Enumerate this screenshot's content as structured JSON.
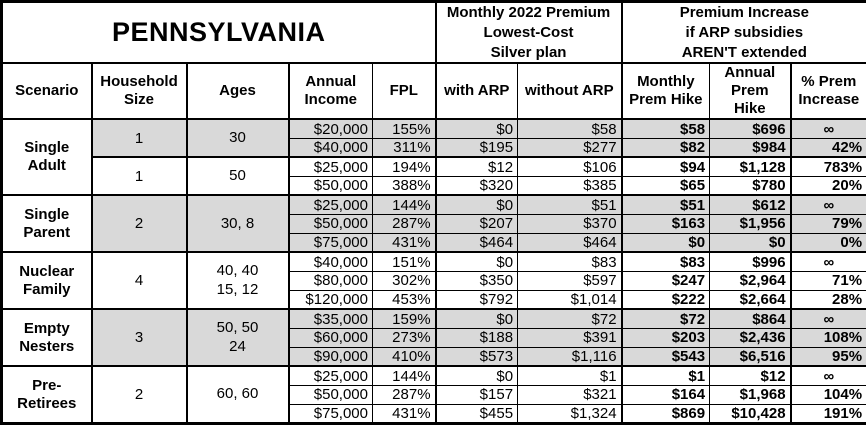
{
  "header": {
    "state": "PENNSYLVANIA",
    "premium_group": "Monthly 2022 Premium\nLowest-Cost\nSilver plan",
    "increase_group": "Premium Increase\nif ARP subsidies\nAREN'T extended"
  },
  "columns": [
    "Scenario",
    "Household\nSize",
    "Ages",
    "Annual\nIncome",
    "FPL",
    "with ARP",
    "without ARP",
    "Monthly\nPrem Hike",
    "Annual\nPrem Hike",
    "% Prem\nIncrease"
  ],
  "colors": {
    "shaded_row": "#d9d9d9",
    "border": "#000000",
    "text": "#000000",
    "background": "#ffffff"
  },
  "scenarios": [
    {
      "name": "Single Adult",
      "subgroups": [
        {
          "household_size": "1",
          "ages": "30",
          "shaded": true,
          "rows": [
            {
              "income": "$20,000",
              "fpl": "155%",
              "with_arp": "$0",
              "without_arp": "$58",
              "monthly_hike": "$58",
              "annual_hike": "$696",
              "pct_increase": "∞"
            },
            {
              "income": "$40,000",
              "fpl": "311%",
              "with_arp": "$195",
              "without_arp": "$277",
              "monthly_hike": "$82",
              "annual_hike": "$984",
              "pct_increase": "42%"
            }
          ]
        },
        {
          "household_size": "1",
          "ages": "50",
          "shaded": false,
          "rows": [
            {
              "income": "$25,000",
              "fpl": "194%",
              "with_arp": "$12",
              "without_arp": "$106",
              "monthly_hike": "$94",
              "annual_hike": "$1,128",
              "pct_increase": "783%"
            },
            {
              "income": "$50,000",
              "fpl": "388%",
              "with_arp": "$320",
              "without_arp": "$385",
              "monthly_hike": "$65",
              "annual_hike": "$780",
              "pct_increase": "20%"
            }
          ]
        }
      ]
    },
    {
      "name": "Single Parent",
      "subgroups": [
        {
          "household_size": "2",
          "ages": "30, 8",
          "shaded": true,
          "rows": [
            {
              "income": "$25,000",
              "fpl": "144%",
              "with_arp": "$0",
              "without_arp": "$51",
              "monthly_hike": "$51",
              "annual_hike": "$612",
              "pct_increase": "∞"
            },
            {
              "income": "$50,000",
              "fpl": "287%",
              "with_arp": "$207",
              "without_arp": "$370",
              "monthly_hike": "$163",
              "annual_hike": "$1,956",
              "pct_increase": "79%"
            },
            {
              "income": "$75,000",
              "fpl": "431%",
              "with_arp": "$464",
              "without_arp": "$464",
              "monthly_hike": "$0",
              "annual_hike": "$0",
              "pct_increase": "0%"
            }
          ]
        }
      ]
    },
    {
      "name": "Nuclear Family",
      "subgroups": [
        {
          "household_size": "4",
          "ages": "40, 40\n15, 12",
          "shaded": false,
          "rows": [
            {
              "income": "$40,000",
              "fpl": "151%",
              "with_arp": "$0",
              "without_arp": "$83",
              "monthly_hike": "$83",
              "annual_hike": "$996",
              "pct_increase": "∞"
            },
            {
              "income": "$80,000",
              "fpl": "302%",
              "with_arp": "$350",
              "without_arp": "$597",
              "monthly_hike": "$247",
              "annual_hike": "$2,964",
              "pct_increase": "71%"
            },
            {
              "income": "$120,000",
              "fpl": "453%",
              "with_arp": "$792",
              "without_arp": "$1,014",
              "monthly_hike": "$222",
              "annual_hike": "$2,664",
              "pct_increase": "28%"
            }
          ]
        }
      ]
    },
    {
      "name": "Empty Nesters",
      "subgroups": [
        {
          "household_size": "3",
          "ages": "50, 50\n24",
          "shaded": true,
          "rows": [
            {
              "income": "$35,000",
              "fpl": "159%",
              "with_arp": "$0",
              "without_arp": "$72",
              "monthly_hike": "$72",
              "annual_hike": "$864",
              "pct_increase": "∞"
            },
            {
              "income": "$60,000",
              "fpl": "273%",
              "with_arp": "$188",
              "without_arp": "$391",
              "monthly_hike": "$203",
              "annual_hike": "$2,436",
              "pct_increase": "108%"
            },
            {
              "income": "$90,000",
              "fpl": "410%",
              "with_arp": "$573",
              "without_arp": "$1,116",
              "monthly_hike": "$543",
              "annual_hike": "$6,516",
              "pct_increase": "95%"
            }
          ]
        }
      ]
    },
    {
      "name": "Pre-Retirees",
      "subgroups": [
        {
          "household_size": "2",
          "ages": "60, 60",
          "shaded": false,
          "rows": [
            {
              "income": "$25,000",
              "fpl": "144%",
              "with_arp": "$0",
              "without_arp": "$1",
              "monthly_hike": "$1",
              "annual_hike": "$12",
              "pct_increase": "∞"
            },
            {
              "income": "$50,000",
              "fpl": "287%",
              "with_arp": "$157",
              "without_arp": "$321",
              "monthly_hike": "$164",
              "annual_hike": "$1,968",
              "pct_increase": "104%"
            },
            {
              "income": "$75,000",
              "fpl": "431%",
              "with_arp": "$455",
              "without_arp": "$1,324",
              "monthly_hike": "$869",
              "annual_hike": "$10,428",
              "pct_increase": "191%"
            }
          ]
        }
      ]
    }
  ]
}
